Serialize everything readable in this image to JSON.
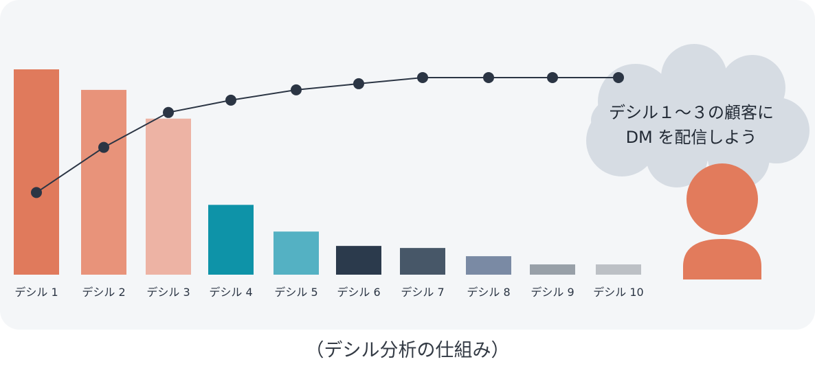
{
  "chart_data": {
    "type": "bar",
    "categories": [
      "デシル 1",
      "デシル 2",
      "デシル 3",
      "デシル 4",
      "デシル 5",
      "デシル 6",
      "デシル 7",
      "デシル 8",
      "デシル 9",
      "デシル 10"
    ],
    "values": [
      100,
      90,
      76,
      34,
      21,
      14,
      13,
      9,
      5,
      5
    ],
    "bar_colors": [
      "#e07a5c",
      "#e8937a",
      "#edb3a4",
      "#0e93a8",
      "#54b1c3",
      "#2b3a4c",
      "#475768",
      "#7a8aa4",
      "#98a0a8",
      "#bcc0c5"
    ],
    "line": {
      "values": [
        40,
        62,
        79,
        85,
        90,
        93,
        96,
        96,
        96,
        96
      ],
      "color": "#2b3544"
    },
    "ylim": [
      0,
      100
    ]
  },
  "speech_bubble": {
    "line1": "デシル１～３の顧客に",
    "line2": "DM を配信しよう",
    "color": "#d6dce3"
  },
  "person": {
    "color": "#e27b5c"
  },
  "caption": "（デシル分析の仕組み）"
}
